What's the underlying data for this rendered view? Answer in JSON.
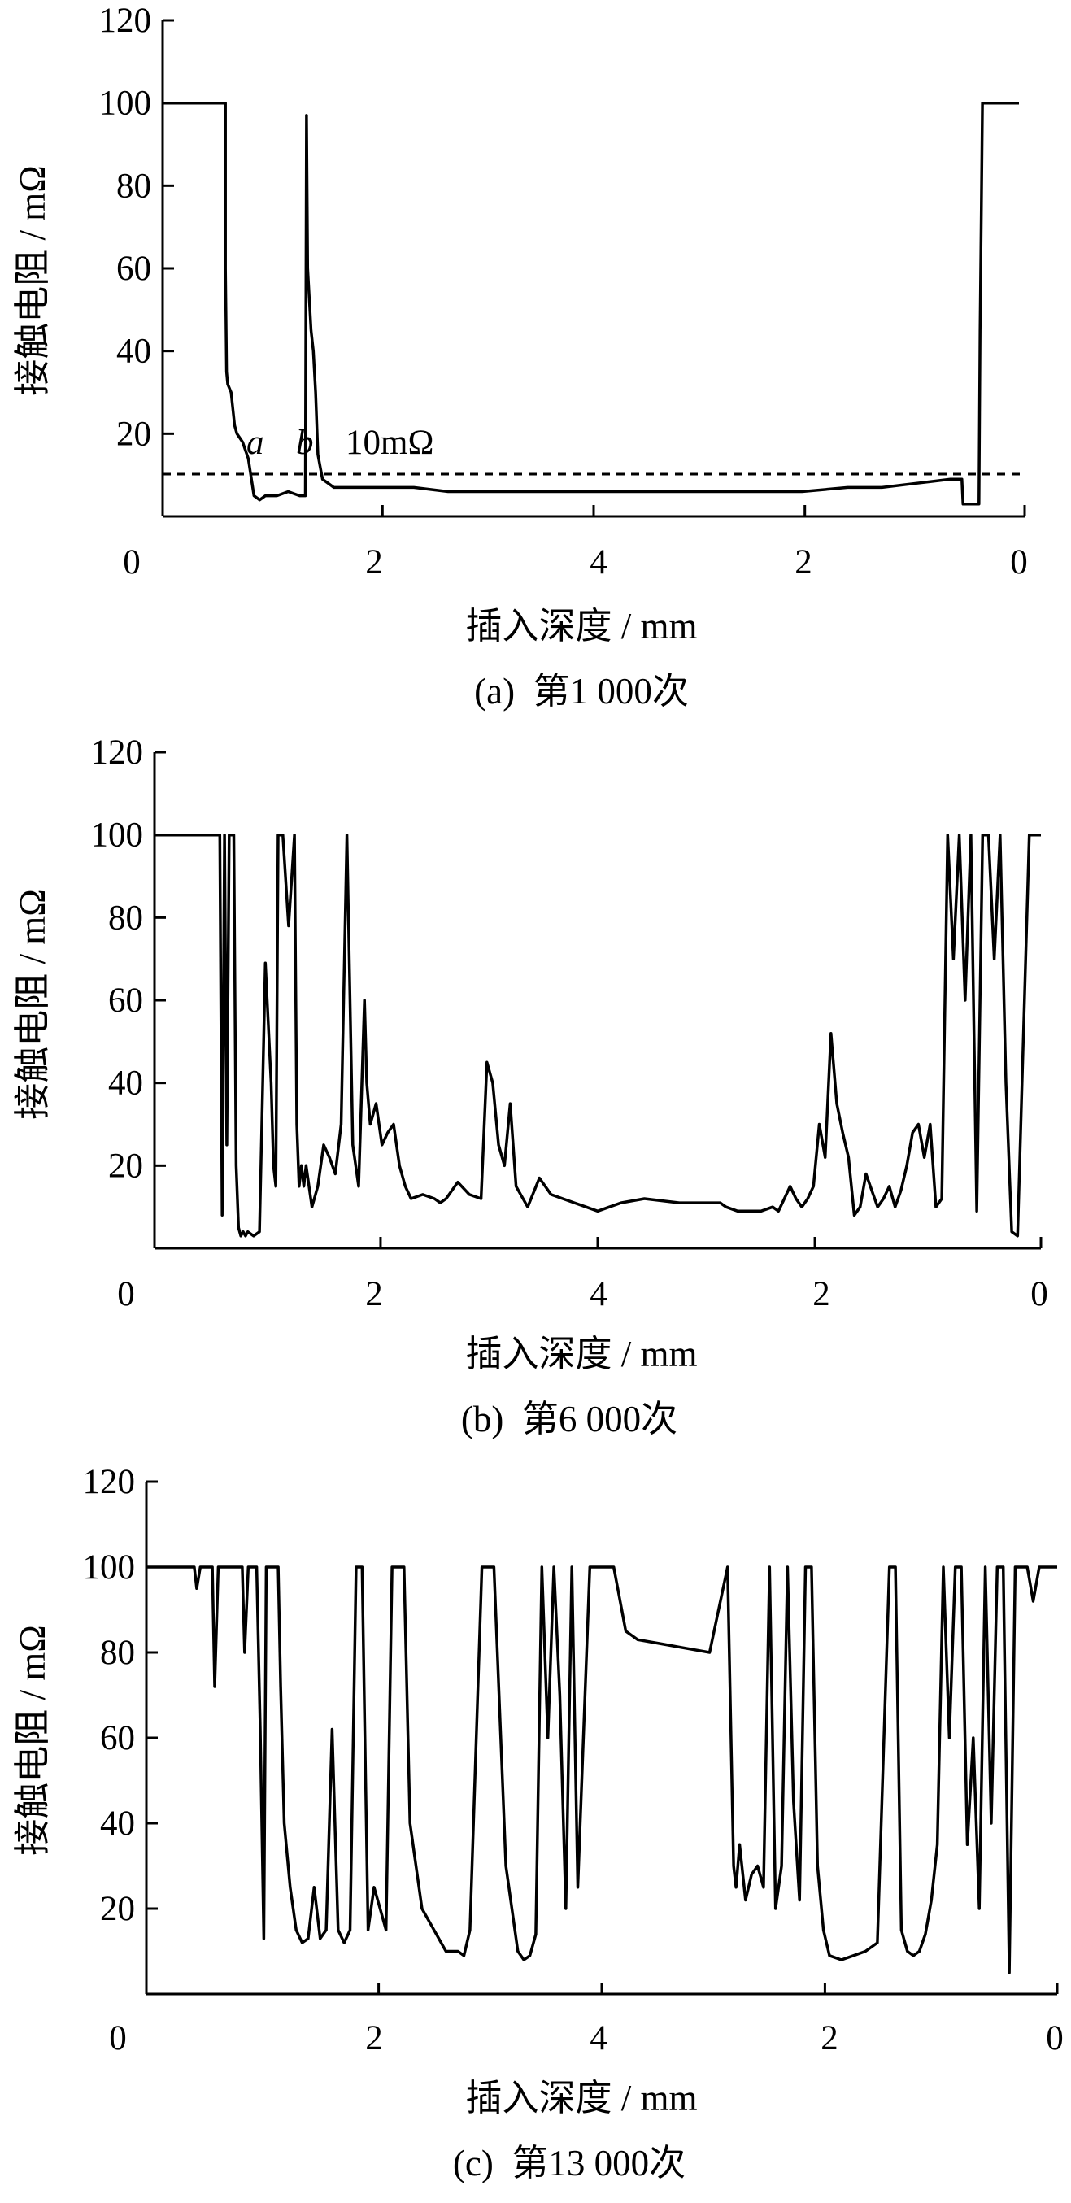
{
  "figure": {
    "line_color": "#000000",
    "background": "#ffffff"
  },
  "chart_data": [
    {
      "type": "line",
      "caption": "(a)  第1 000次",
      "xlabel": "插入深度 / mm",
      "ylabel": "接触电阻 / mΩ",
      "x_tick_labels": [
        "0",
        "2",
        "4",
        "2",
        "0"
      ],
      "ylim": [
        0,
        120
      ],
      "y_ticks": [
        20,
        40,
        60,
        80,
        100,
        120
      ],
      "grid": false,
      "annotations": [
        {
          "text": "a",
          "x": 1.1,
          "y": 15
        },
        {
          "text": "b",
          "x": 1.5,
          "y": 15
        },
        {
          "text": "10mΩ",
          "x": 2.2,
          "y": 15
        }
      ],
      "threshold": {
        "label": "10mΩ",
        "value": 10,
        "style": "dashed"
      },
      "series": [
        {
          "x": [
            0.0,
            0.55,
            0.55,
            0.56,
            0.57,
            0.6,
            0.63,
            0.65,
            0.7,
            0.75,
            0.8,
            0.85,
            0.9,
            1.0,
            1.1,
            1.2,
            1.25,
            1.26,
            1.27,
            1.3,
            1.32,
            1.34,
            1.36,
            1.38,
            1.4,
            1.45,
            1.5,
            1.6,
            1.8,
            2.0,
            2.2,
            2.5,
            2.8,
            3.0,
            3.3,
            3.6,
            4.0,
            4.4,
            4.8,
            5.2,
            5.6,
            6.0,
            6.3,
            6.6,
            6.9,
            7.0,
            7.01,
            7.15,
            7.16,
            7.18,
            7.2,
            7.5
          ],
          "y": [
            100,
            100,
            60,
            35,
            32,
            30,
            22,
            20,
            18,
            14,
            5,
            4,
            5,
            5,
            6,
            5,
            5,
            97,
            60,
            45,
            40,
            30,
            15,
            12,
            9,
            8,
            7,
            7,
            7,
            7,
            7,
            6,
            6,
            6,
            6,
            6,
            6,
            6,
            6,
            6,
            6,
            7,
            7,
            8,
            9,
            9,
            3,
            3,
            45,
            100,
            100,
            100
          ]
        }
      ]
    },
    {
      "type": "line",
      "caption": "(b)  第6 000次",
      "xlabel": "插入深度 / mm",
      "ylabel": "接触电阻 / mΩ",
      "x_tick_labels": [
        "0",
        "2",
        "4",
        "2",
        "0"
      ],
      "ylim": [
        0,
        120
      ],
      "y_ticks": [
        20,
        40,
        60,
        80,
        100,
        120
      ],
      "grid": false,
      "series": [
        {
          "x": [
            0.0,
            0.55,
            0.56,
            0.58,
            0.6,
            0.62,
            0.64,
            0.66,
            0.68,
            0.7,
            0.72,
            0.74,
            0.76,
            0.78,
            0.8,
            0.85,
            0.9,
            0.95,
            1.0,
            1.02,
            1.04,
            1.06,
            1.08,
            1.1,
            1.15,
            1.2,
            1.22,
            1.24,
            1.26,
            1.28,
            1.3,
            1.35,
            1.4,
            1.45,
            1.5,
            1.55,
            1.6,
            1.65,
            1.7,
            1.75,
            1.8,
            1.82,
            1.85,
            1.9,
            1.95,
            2.0,
            2.05,
            2.1,
            2.15,
            2.2,
            2.3,
            2.4,
            2.45,
            2.5,
            2.6,
            2.7,
            2.8,
            2.85,
            2.9,
            2.95,
            3.0,
            3.05,
            3.1,
            3.2,
            3.3,
            3.4,
            3.5,
            3.6,
            3.7,
            3.8,
            3.9,
            4.0,
            4.2,
            4.5,
            4.7,
            4.85,
            4.9,
            5.0,
            5.1,
            5.2,
            5.3,
            5.35,
            5.4,
            5.45,
            5.5,
            5.55,
            5.6,
            5.65,
            5.7,
            5.75,
            5.8,
            5.85,
            5.9,
            5.95,
            6.0,
            6.05,
            6.1,
            6.15,
            6.2,
            6.25,
            6.3,
            6.35,
            6.4,
            6.45,
            6.5,
            6.55,
            6.6,
            6.65,
            6.7,
            6.75,
            6.8,
            6.85,
            6.9,
            6.95,
            7.0,
            7.05,
            7.1,
            7.15,
            7.2,
            7.25,
            7.3,
            7.35,
            7.4,
            7.5,
            7.6
          ],
          "y": [
            100,
            100,
            100,
            8,
            100,
            25,
            100,
            100,
            100,
            20,
            5,
            3,
            4,
            3,
            4,
            3,
            4,
            69,
            40,
            20,
            15,
            100,
            100,
            100,
            78,
            100,
            30,
            15,
            20,
            15,
            20,
            10,
            15,
            25,
            22,
            18,
            30,
            100,
            25,
            15,
            60,
            40,
            30,
            35,
            25,
            28,
            30,
            20,
            15,
            12,
            13,
            12,
            11,
            12,
            16,
            13,
            12,
            45,
            40,
            25,
            20,
            35,
            15,
            10,
            17,
            13,
            12,
            11,
            10,
            9,
            10,
            11,
            12,
            11,
            11,
            11,
            10,
            9,
            9,
            9,
            10,
            9,
            12,
            15,
            12,
            10,
            12,
            15,
            30,
            22,
            52,
            35,
            28,
            22,
            8,
            10,
            18,
            14,
            10,
            12,
            15,
            10,
            14,
            20,
            28,
            30,
            22,
            30,
            10,
            12,
            100,
            70,
            100,
            60,
            100,
            9,
            100,
            100,
            70,
            100,
            40,
            4,
            3,
            100,
            100
          ],
          "x_axis_length": 7.6
        }
      ]
    },
    {
      "type": "line",
      "caption": "(c)  第13 000次",
      "xlabel": "插入深度 / mm",
      "ylabel": "接触电阻 / mΩ",
      "x_tick_labels": [
        "0",
        "2",
        "4",
        "2",
        "0"
      ],
      "ylim": [
        0,
        120
      ],
      "y_ticks": [
        20,
        40,
        60,
        80,
        100,
        120
      ],
      "grid": false,
      "series": [
        {
          "x": [
            0.0,
            0.4,
            0.42,
            0.45,
            0.55,
            0.57,
            0.6,
            0.8,
            0.82,
            0.85,
            0.92,
            0.95,
            0.98,
            1.0,
            1.02,
            1.05,
            1.08,
            1.1,
            1.12,
            1.15,
            1.2,
            1.25,
            1.3,
            1.35,
            1.4,
            1.45,
            1.5,
            1.55,
            1.6,
            1.65,
            1.7,
            1.75,
            1.8,
            1.85,
            1.9,
            1.95,
            2.0,
            2.05,
            2.1,
            2.15,
            2.2,
            2.3,
            2.4,
            2.5,
            2.6,
            2.65,
            2.7,
            2.8,
            2.9,
            3.0,
            3.1,
            3.15,
            3.2,
            3.25,
            3.3,
            3.35,
            3.4,
            3.45,
            3.5,
            3.55,
            3.6,
            3.7,
            3.8,
            3.9,
            4.0,
            4.05,
            4.1,
            4.3,
            4.5,
            4.7,
            4.85,
            4.9,
            4.92,
            4.95,
            5.0,
            5.05,
            5.1,
            5.15,
            5.2,
            5.25,
            5.3,
            5.35,
            5.4,
            5.45,
            5.5,
            5.55,
            5.6,
            5.65,
            5.7,
            5.8,
            5.9,
            6.0,
            6.1,
            6.2,
            6.25,
            6.3,
            6.35,
            6.4,
            6.45,
            6.5,
            6.55,
            6.6,
            6.65,
            6.7,
            6.75,
            6.8,
            6.85,
            6.9,
            6.95,
            7.0,
            7.05,
            7.1,
            7.15,
            7.2,
            7.25,
            7.3,
            7.35,
            7.4,
            7.45,
            7.5,
            7.6
          ],
          "y": [
            100,
            100,
            95,
            100,
            100,
            72,
            100,
            100,
            80,
            100,
            100,
            62,
            13,
            100,
            100,
            100,
            100,
            100,
            72,
            40,
            25,
            15,
            12,
            13,
            25,
            13,
            15,
            62,
            15,
            12,
            15,
            100,
            100,
            15,
            25,
            20,
            15,
            100,
            100,
            100,
            40,
            20,
            15,
            10,
            10,
            9,
            15,
            100,
            100,
            30,
            10,
            8,
            9,
            14,
            100,
            60,
            100,
            70,
            20,
            100,
            25,
            100,
            100,
            100,
            85,
            84,
            83,
            82,
            81,
            80,
            100,
            30,
            25,
            35,
            22,
            28,
            30,
            25,
            100,
            20,
            30,
            100,
            45,
            22,
            100,
            100,
            30,
            15,
            9,
            8,
            9,
            10,
            12,
            100,
            100,
            15,
            10,
            9,
            10,
            14,
            22,
            35,
            100,
            60,
            100,
            100,
            35,
            60,
            20,
            100,
            40,
            100,
            100,
            5,
            100,
            100,
            100,
            92,
            100,
            100,
            100
          ]
        }
      ]
    }
  ]
}
